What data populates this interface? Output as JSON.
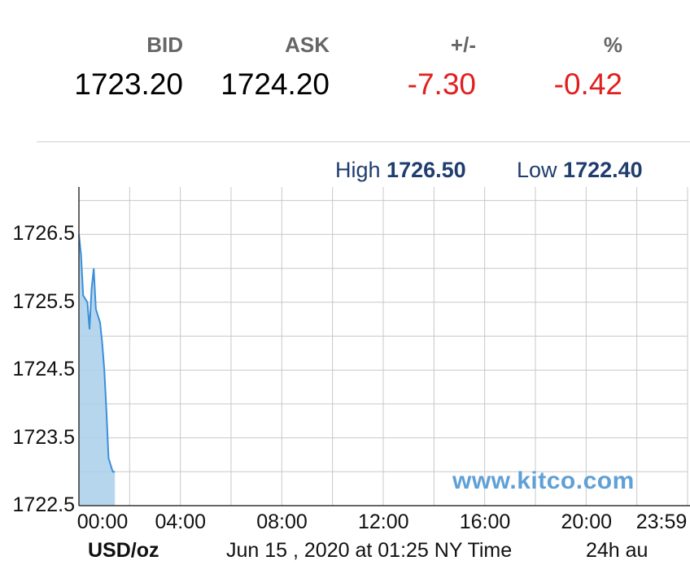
{
  "quote": {
    "bid_label": "BID",
    "ask_label": "ASK",
    "change_label": "+/-",
    "percent_label": "%",
    "bid": "1723.20",
    "ask": "1724.20",
    "change": "-7.30",
    "percent": "-0.42",
    "negative_color": "#e02020"
  },
  "range": {
    "high_label": "High",
    "high": "1726.50",
    "low_label": "Low",
    "low": "1722.40"
  },
  "footer": {
    "unit": "USD/oz",
    "timestamp": "Jun 15 , 2020 at 01:25 NY Time",
    "period": "24h au"
  },
  "watermark": "www.kitco.com",
  "chart_data": {
    "type": "area",
    "x_unit": "time (h:mm)",
    "x": [
      "00:00",
      "00:05",
      "00:10",
      "00:15",
      "00:20",
      "00:25",
      "00:30",
      "00:35",
      "00:40",
      "00:45",
      "00:50",
      "00:55",
      "01:00",
      "01:05",
      "01:10",
      "01:15",
      "01:20",
      "01:25"
    ],
    "values": [
      1726.5,
      1726.2,
      1725.6,
      1725.55,
      1725.5,
      1725.1,
      1725.7,
      1726.0,
      1725.4,
      1725.3,
      1725.2,
      1724.9,
      1724.5,
      1723.9,
      1723.2,
      1723.1,
      1723.0,
      1723.0
    ],
    "ylim": [
      1722.5,
      1727.2
    ],
    "yticks": [
      "1726.5",
      "1725.5",
      "1724.5",
      "1723.5",
      "1722.5"
    ],
    "xticks": [
      "00:00",
      "04:00",
      "08:00",
      "12:00",
      "16:00",
      "20:00",
      "23:59"
    ],
    "grid": true,
    "line_color": "#3a8fd9",
    "fill_color": "#a9cfea"
  }
}
